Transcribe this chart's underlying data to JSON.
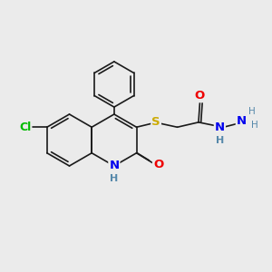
{
  "background_color": "#ebebeb",
  "line_color": "#1a1a1a",
  "atom_colors": {
    "Cl": "#00bb00",
    "N": "#0000ee",
    "O": "#ee0000",
    "S": "#ccaa00",
    "H": "#5588aa",
    "C": "#1a1a1a"
  },
  "font_size": 8.5,
  "lw": 1.2,
  "ring_r": 0.95,
  "fig_size": [
    3.0,
    3.0
  ],
  "dpi": 100,
  "xlim": [
    0,
    10
  ],
  "ylim": [
    0,
    10
  ]
}
